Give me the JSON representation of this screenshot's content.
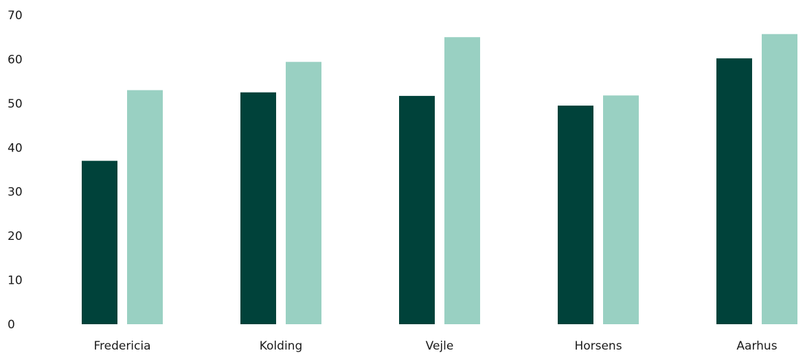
{
  "chart_data": {
    "type": "bar",
    "categories": [
      "Fredericia",
      "Kolding",
      "Vejle",
      "Horsens",
      "Aarhus"
    ],
    "series": [
      {
        "values": [
          37,
          52.5,
          51.7,
          49.5,
          60.2
        ],
        "color": "#00423a"
      },
      {
        "values": [
          53,
          59.4,
          65,
          51.8,
          65.7
        ],
        "color": "#99d0c2"
      }
    ],
    "yticks": [
      0,
      10,
      20,
      30,
      40,
      50,
      60,
      70
    ],
    "ylim": [
      0,
      70
    ],
    "grid": false,
    "legend": "none",
    "title": "",
    "xlabel": "",
    "ylabel": ""
  }
}
